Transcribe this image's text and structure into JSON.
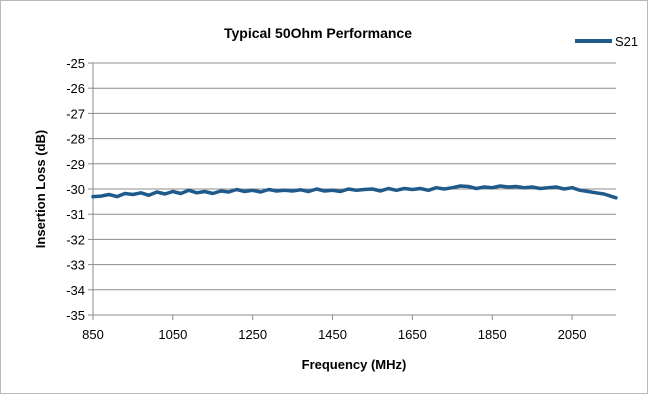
{
  "chart_data": {
    "type": "line",
    "title": "Typical 50Ohm Performance",
    "xlabel": "Frequency (MHz)",
    "ylabel": "Insertion Loss (dB)",
    "xlim": [
      850,
      2160
    ],
    "ylim": [
      -35,
      -25
    ],
    "x_ticks": [
      850,
      1050,
      1250,
      1450,
      1650,
      1850,
      2050
    ],
    "x_tick_labels": [
      "850",
      "1050",
      "1250",
      "1450",
      "1650",
      "1850",
      "2050"
    ],
    "y_ticks": [
      -25,
      -26,
      -27,
      -28,
      -29,
      -30,
      -31,
      -32,
      -33,
      -34,
      -35
    ],
    "y_tick_labels": [
      "-25",
      "-26",
      "-27",
      "-28",
      "-29",
      "-30",
      "-31",
      "-32",
      "-33",
      "-34",
      "-35"
    ],
    "grid": true,
    "legend_position": "top-right",
    "series": [
      {
        "name": "S21",
        "color": "#1f5a8c",
        "points": [
          [
            850,
            -30.3
          ],
          [
            870,
            -30.28
          ],
          [
            890,
            -30.22
          ],
          [
            910,
            -30.3
          ],
          [
            930,
            -30.18
          ],
          [
            950,
            -30.22
          ],
          [
            970,
            -30.15
          ],
          [
            990,
            -30.25
          ],
          [
            1010,
            -30.12
          ],
          [
            1030,
            -30.2
          ],
          [
            1050,
            -30.1
          ],
          [
            1070,
            -30.18
          ],
          [
            1090,
            -30.05
          ],
          [
            1110,
            -30.15
          ],
          [
            1130,
            -30.1
          ],
          [
            1150,
            -30.18
          ],
          [
            1170,
            -30.08
          ],
          [
            1190,
            -30.12
          ],
          [
            1210,
            -30.02
          ],
          [
            1230,
            -30.1
          ],
          [
            1250,
            -30.05
          ],
          [
            1270,
            -30.12
          ],
          [
            1290,
            -30.02
          ],
          [
            1310,
            -30.08
          ],
          [
            1330,
            -30.05
          ],
          [
            1350,
            -30.08
          ],
          [
            1370,
            -30.03
          ],
          [
            1390,
            -30.1
          ],
          [
            1410,
            -30.0
          ],
          [
            1430,
            -30.08
          ],
          [
            1450,
            -30.05
          ],
          [
            1470,
            -30.1
          ],
          [
            1490,
            -30.0
          ],
          [
            1510,
            -30.05
          ],
          [
            1530,
            -30.02
          ],
          [
            1550,
            -30.0
          ],
          [
            1570,
            -30.08
          ],
          [
            1590,
            -29.98
          ],
          [
            1610,
            -30.05
          ],
          [
            1630,
            -29.98
          ],
          [
            1650,
            -30.02
          ],
          [
            1670,
            -29.98
          ],
          [
            1690,
            -30.05
          ],
          [
            1710,
            -29.95
          ],
          [
            1730,
            -30.0
          ],
          [
            1750,
            -29.95
          ],
          [
            1770,
            -29.88
          ],
          [
            1790,
            -29.9
          ],
          [
            1810,
            -29.98
          ],
          [
            1830,
            -29.92
          ],
          [
            1850,
            -29.95
          ],
          [
            1870,
            -29.88
          ],
          [
            1890,
            -29.92
          ],
          [
            1910,
            -29.9
          ],
          [
            1930,
            -29.95
          ],
          [
            1950,
            -29.92
          ],
          [
            1970,
            -29.98
          ],
          [
            1990,
            -29.95
          ],
          [
            2010,
            -29.92
          ],
          [
            2030,
            -30.0
          ],
          [
            2050,
            -29.95
          ],
          [
            2070,
            -30.05
          ],
          [
            2090,
            -30.1
          ],
          [
            2110,
            -30.15
          ],
          [
            2130,
            -30.2
          ],
          [
            2150,
            -30.3
          ],
          [
            2160,
            -30.35
          ]
        ]
      }
    ]
  }
}
